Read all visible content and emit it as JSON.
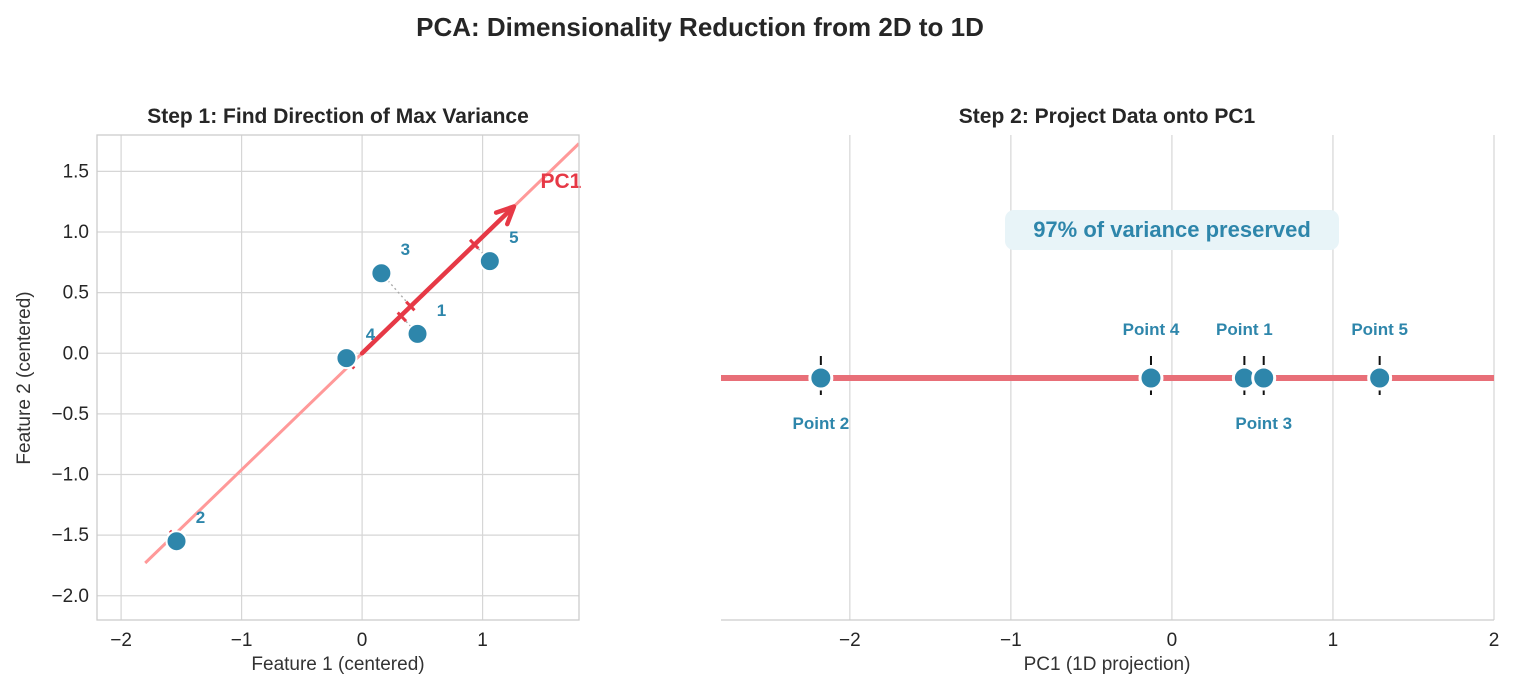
{
  "figure": {
    "title": "PCA: Dimensionality Reduction from 2D to 1D"
  },
  "colors": {
    "point": "#2e86ab",
    "pc1_arrow": "#e63946",
    "pc1_line": "#ff9999",
    "proj_line": "#e86f78",
    "grid": "#d6d6d6",
    "spine": "#cccccc",
    "text": "#262626",
    "annotation_bg": "#e8f4f8"
  },
  "chart_data": [
    {
      "type": "scatter",
      "title": "Step 1: Find Direction of Max Variance",
      "xlabel": "Feature 1 (centered)",
      "ylabel": "Feature 2 (centered)",
      "xlim": [
        -2.2,
        1.8
      ],
      "ylim": [
        -2.2,
        1.8
      ],
      "xticks": [
        -2,
        -1,
        0,
        1
      ],
      "yticks": [
        -2.0,
        -1.5,
        -1.0,
        -0.5,
        0.0,
        0.5,
        1.0,
        1.5
      ],
      "xtick_labels": [
        "−2",
        "−1",
        "0",
        "1"
      ],
      "ytick_labels": [
        "−2.0",
        "−1.5",
        "−1.0",
        "−0.5",
        "0.0",
        "0.5",
        "1.0",
        "1.5"
      ],
      "grid": true,
      "points": [
        {
          "label": "1",
          "x": 0.46,
          "y": 0.16
        },
        {
          "label": "2",
          "x": -1.54,
          "y": -1.55
        },
        {
          "label": "3",
          "x": 0.16,
          "y": 0.66
        },
        {
          "label": "4",
          "x": -0.13,
          "y": -0.04
        },
        {
          "label": "5",
          "x": 1.06,
          "y": 0.76
        }
      ],
      "projections": [
        {
          "x": 0.33,
          "y": 0.3
        },
        {
          "x": -1.56,
          "y": -1.5
        },
        {
          "x": 0.4,
          "y": 0.39
        },
        {
          "x": -0.1,
          "y": -0.09
        },
        {
          "x": 0.93,
          "y": 0.9
        }
      ],
      "pc1_line": {
        "x": [
          -1.8,
          1.8
        ],
        "y": [
          -1.73,
          1.73
        ]
      },
      "pc1_arrow": {
        "from": [
          0.0,
          0.0
        ],
        "to": [
          1.26,
          1.21
        ],
        "label": "PC1",
        "label_pos": [
          1.65,
          1.42
        ]
      }
    },
    {
      "type": "scatter",
      "title": "Step 2: Project Data onto PC1",
      "xlabel": "PC1 (1D projection)",
      "xlim": [
        -2.8,
        2.0
      ],
      "xticks": [
        -2,
        -1,
        0,
        1,
        2
      ],
      "xtick_labels": [
        "−2",
        "−1",
        "0",
        "1",
        "2"
      ],
      "grid": true,
      "annotation": "97% of variance preserved",
      "points": [
        {
          "label": "Point 1",
          "x": 0.45,
          "label_side": "above"
        },
        {
          "label": "Point 2",
          "x": -2.18,
          "label_side": "below"
        },
        {
          "label": "Point 3",
          "x": 0.57,
          "label_side": "below"
        },
        {
          "label": "Point 4",
          "x": -0.13,
          "label_side": "above"
        },
        {
          "label": "Point 5",
          "x": 1.29,
          "label_side": "above"
        }
      ]
    }
  ]
}
